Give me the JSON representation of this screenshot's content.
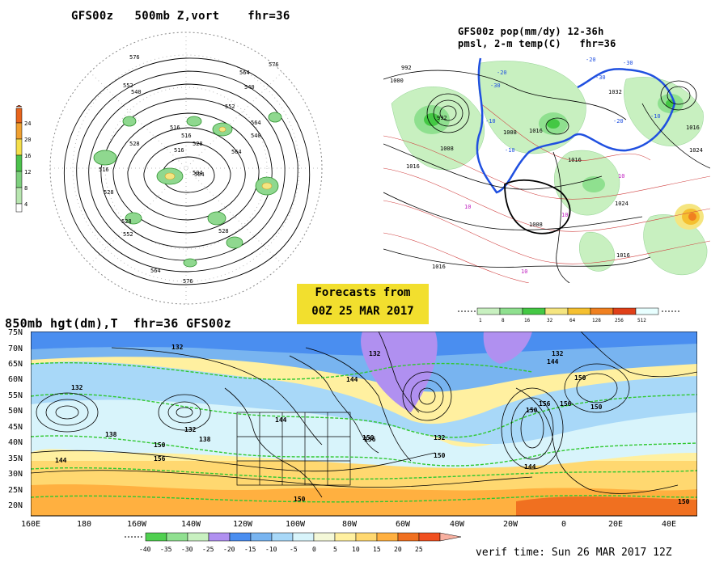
{
  "panels": {
    "vort_title": "GFS00z   500mb Z,vort    fhr=36",
    "pop_title_1": "GFS00z pop(mm/dy) 12-36h",
    "pop_title_2": "pmsl, 2-m temp(C)   fhr=36",
    "h850_title": "850mb hgt(dm),T  fhr=36 GFS00z"
  },
  "forecast_box": {
    "line1": "Forecasts from",
    "line2": "00Z 25 MAR 2017"
  },
  "verif_time": "verif time: Sun 26 MAR 2017 12Z",
  "vort_colorbar": {
    "labels": [
      "24",
      "20",
      "16",
      "12",
      "8",
      "4"
    ],
    "colors": [
      "#e8641c",
      "#f0a030",
      "#f5df4a",
      "#4cc24c",
      "#7ed07e",
      "#b8e6b0",
      "#ffffff"
    ]
  },
  "pop_colorbar": {
    "labels": [
      "1",
      "8",
      "16",
      "32",
      "64",
      "128",
      "256",
      "512"
    ],
    "colors": [
      "#c8f0c0",
      "#8fe08f",
      "#44c844",
      "#f5e580",
      "#f5c030",
      "#f08020",
      "#e04018",
      "#e8ffff"
    ]
  },
  "temp_colorbar": {
    "labels": [
      "-40",
      "-35",
      "-30",
      "-25",
      "-20",
      "-15",
      "-10",
      "-5",
      "0",
      "5",
      "10",
      "15",
      "20",
      "25"
    ],
    "colors": [
      "#50d050",
      "#90e090",
      "#c8f0c0",
      "#b090f0",
      "#4a8ef0",
      "#78b4f0",
      "#a8d8f8",
      "#d8f4fb",
      "#f4f8d8",
      "#fff0a0",
      "#ffd870",
      "#ffb040",
      "#f07020",
      "#f05020"
    ]
  },
  "map850": {
    "lat_labels": [
      "75N",
      "70N",
      "65N",
      "60N",
      "55N",
      "50N",
      "45N",
      "40N",
      "35N",
      "30N",
      "25N",
      "20N"
    ],
    "lon_labels": [
      "160E",
      "180",
      "160W",
      "140W",
      "120W",
      "100W",
      "80W",
      "60W",
      "40W",
      "20W",
      "0",
      "20E",
      "40E"
    ],
    "height_labels": [
      "132",
      "138",
      "144",
      "132",
      "138",
      "144",
      "150",
      "156",
      "132",
      "150",
      "144",
      "150",
      "156",
      "132",
      "132",
      "144",
      "150",
      "156",
      "150",
      "144",
      "150",
      "156",
      "150",
      "132",
      "150"
    ]
  },
  "vort_contours": [
    "576",
    "564",
    "552",
    "540",
    "528",
    "516",
    "504",
    "516",
    "528",
    "552",
    "564",
    "576",
    "552",
    "540",
    "504",
    "516",
    "528",
    "540",
    "564",
    "576",
    "528",
    "528",
    "516",
    "564"
  ],
  "pmsl_labels": [
    "992",
    "1008",
    "1016",
    "1000",
    "992",
    "1008",
    "1016",
    "1032",
    "1016",
    "1008",
    "1016",
    "1024",
    "1016",
    "1016",
    "1024"
  ],
  "temp2m_labels": [
    "-20",
    "-30",
    "-10",
    "-20",
    "-30",
    "-10",
    "10",
    "10",
    "10",
    "10",
    "-10",
    "-20",
    "-30"
  ]
}
